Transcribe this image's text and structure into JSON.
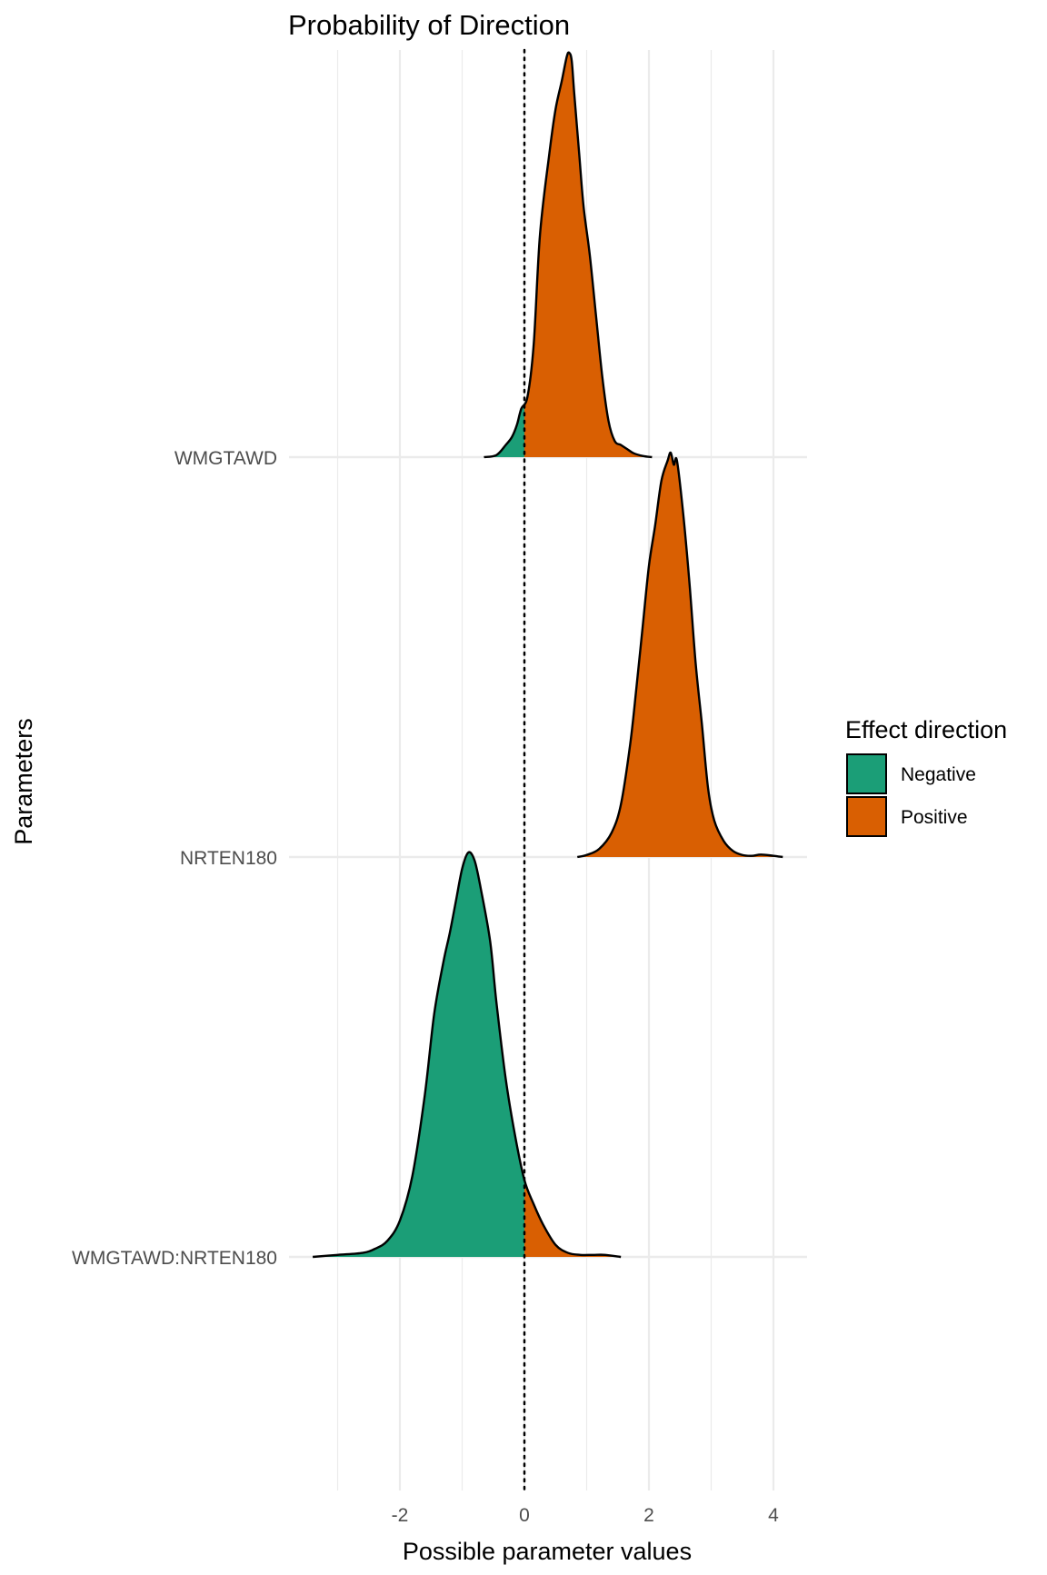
{
  "chart_data": {
    "type": "ridgeline-density",
    "title": "Probability of Direction",
    "xlabel": "Possible parameter values",
    "ylabel": "Parameters",
    "xlim": [
      -3.4,
      4.6
    ],
    "x_ticks": [
      -2,
      0,
      2,
      4
    ],
    "x_tick_labels": [
      "-2",
      "0",
      "2",
      "4"
    ],
    "x_minor_gridlines": [
      -3,
      -1,
      1,
      3
    ],
    "reference_line_x": 0,
    "parameters": [
      {
        "name": "WMGTAWD",
        "x": [
          -0.65,
          -0.45,
          -0.3,
          -0.2,
          -0.12,
          -0.05,
          0.05,
          0.15,
          0.25,
          0.4,
          0.5,
          0.6,
          0.68,
          0.72,
          0.76,
          0.8,
          0.88,
          0.95,
          1.05,
          1.15,
          1.25,
          1.35,
          1.45,
          1.55,
          1.65,
          1.75,
          1.9,
          2.05
        ],
        "density": [
          0.0,
          0.005,
          0.03,
          0.05,
          0.08,
          0.12,
          0.15,
          0.28,
          0.55,
          0.75,
          0.86,
          0.93,
          0.99,
          1.0,
          0.98,
          0.9,
          0.75,
          0.62,
          0.5,
          0.35,
          0.2,
          0.09,
          0.04,
          0.03,
          0.02,
          0.01,
          0.003,
          0.0
        ]
      },
      {
        "name": "NRTEN180",
        "x": [
          0.85,
          1.0,
          1.2,
          1.4,
          1.55,
          1.7,
          1.8,
          1.9,
          2.0,
          2.1,
          2.2,
          2.3,
          2.35,
          2.4,
          2.45,
          2.55,
          2.65,
          2.75,
          2.85,
          2.95,
          3.05,
          3.2,
          3.35,
          3.5,
          3.65,
          3.8,
          4.0,
          4.15
        ],
        "density": [
          0.0,
          0.005,
          0.02,
          0.06,
          0.13,
          0.28,
          0.42,
          0.57,
          0.72,
          0.82,
          0.93,
          0.98,
          1.0,
          0.97,
          0.98,
          0.85,
          0.68,
          0.48,
          0.33,
          0.17,
          0.09,
          0.04,
          0.015,
          0.005,
          0.003,
          0.006,
          0.003,
          0.0
        ]
      },
      {
        "name": "WMGTAWD:NRTEN180",
        "x": [
          -3.4,
          -3.0,
          -2.6,
          -2.4,
          -2.2,
          -2.0,
          -1.8,
          -1.6,
          -1.45,
          -1.3,
          -1.2,
          -1.1,
          -1.0,
          -0.9,
          -0.8,
          -0.7,
          -0.55,
          -0.45,
          -0.3,
          -0.15,
          0.0,
          0.15,
          0.3,
          0.5,
          0.7,
          0.9,
          1.1,
          1.3,
          1.55
        ],
        "density": [
          0.0,
          0.005,
          0.01,
          0.02,
          0.04,
          0.09,
          0.2,
          0.4,
          0.6,
          0.73,
          0.8,
          0.88,
          0.96,
          1.0,
          0.98,
          0.91,
          0.78,
          0.63,
          0.44,
          0.3,
          0.19,
          0.13,
          0.08,
          0.03,
          0.01,
          0.005,
          0.005,
          0.005,
          0.0
        ]
      }
    ],
    "legend": {
      "title": "Effect direction",
      "placement": "right",
      "items": [
        {
          "label": "Negative",
          "color": "#1B9E77"
        },
        {
          "label": "Positive",
          "color": "#D95F02"
        }
      ]
    },
    "colors": {
      "negative": "#1B9E77",
      "positive": "#D95F02",
      "grid": "#EBEBEB",
      "outline": "#000000"
    }
  }
}
